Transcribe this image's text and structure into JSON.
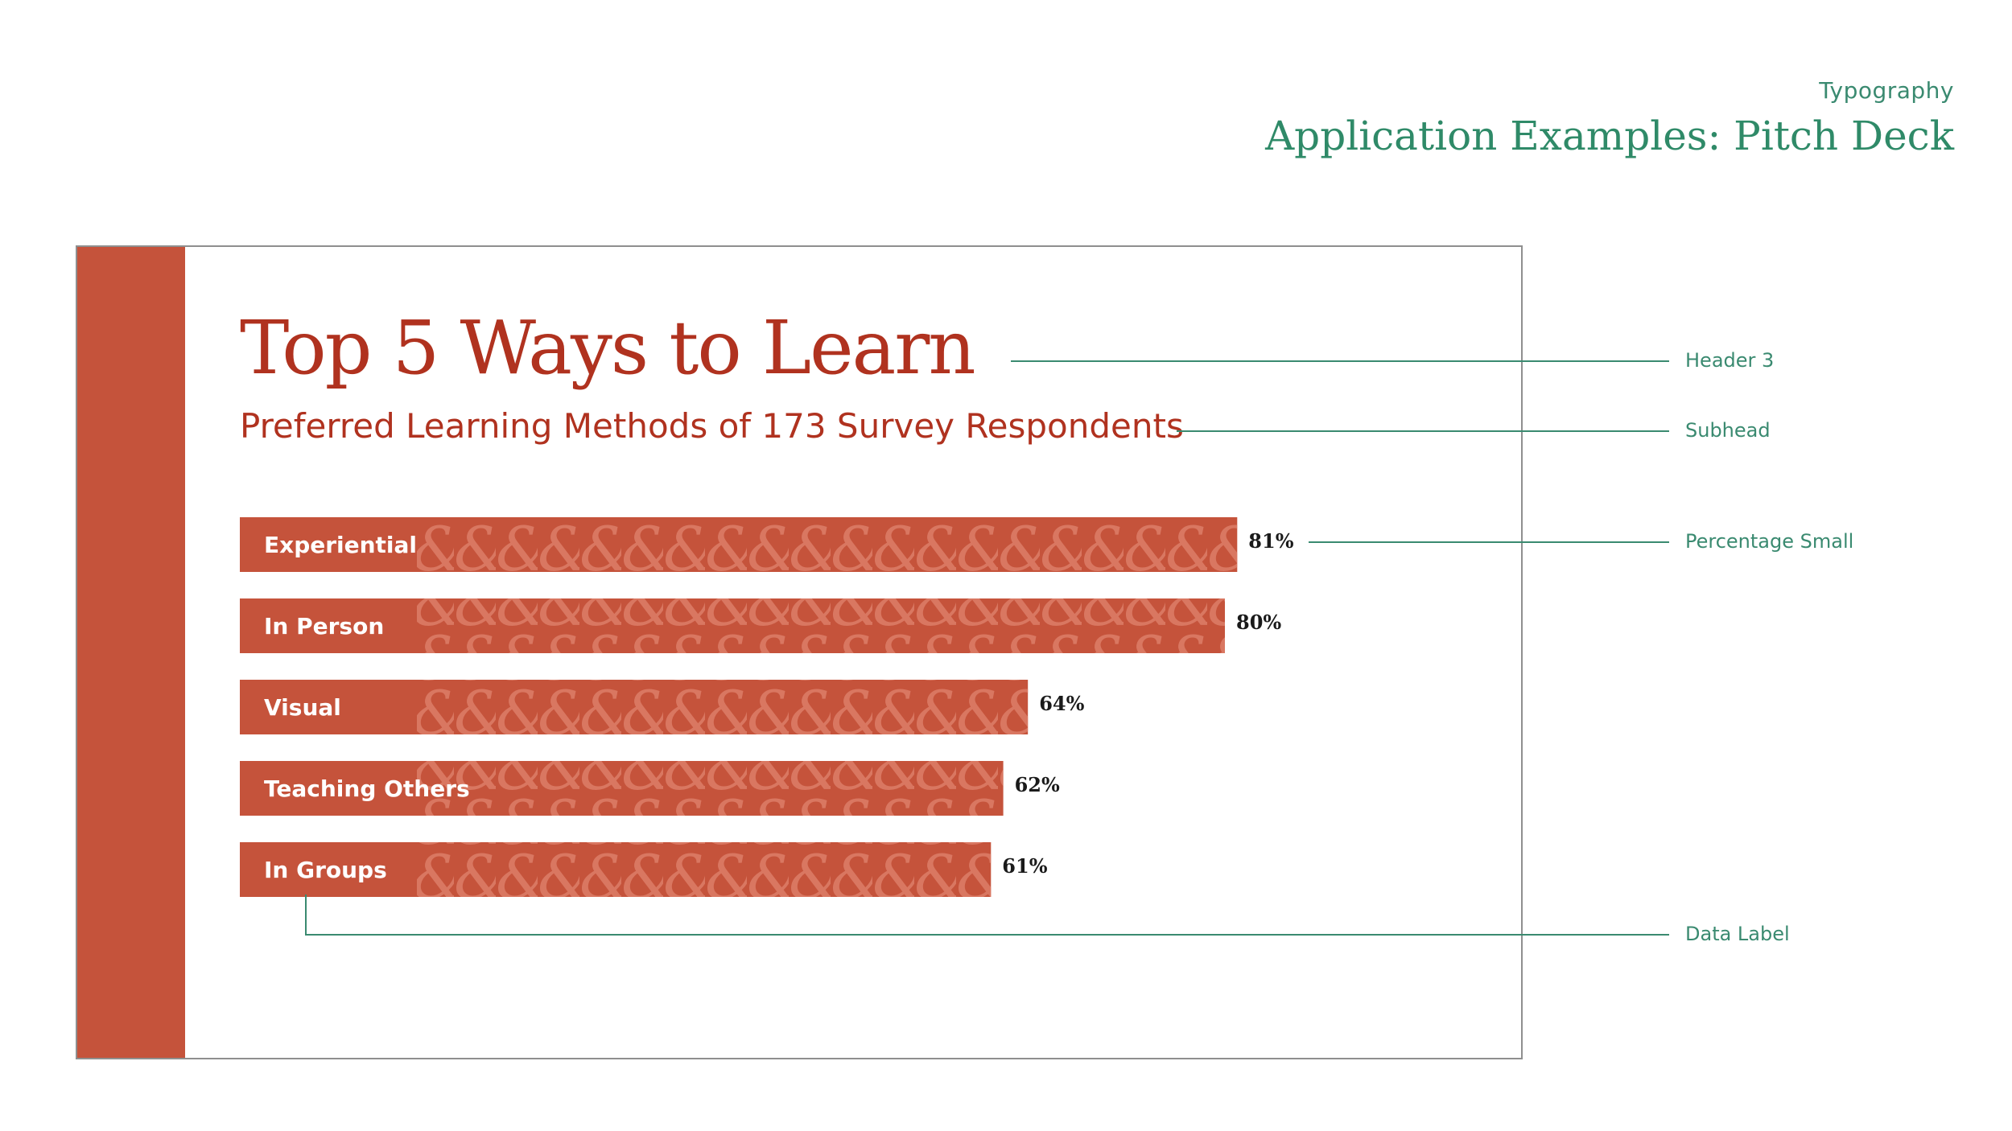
{
  "header": {
    "section": "Typography",
    "title": "Application Examples: Pitch Deck"
  },
  "slide": {
    "header": "Top 5 Ways to Learn",
    "subhead": "Preferred Learning Methods of 173 Survey Respondents"
  },
  "annotations": {
    "header3": "Header 3",
    "subhead": "Subhead",
    "percentage_small": "Percentage Small",
    "data_label": "Data Label"
  },
  "colors": {
    "accent_red": "#c5533b",
    "title_red": "#b0321f",
    "annotation_green": "#3a8a70"
  },
  "chart_data": {
    "type": "bar",
    "orientation": "horizontal",
    "categories": [
      "Experiential",
      "In Person",
      "Visual",
      "Teaching Others",
      "In Groups"
    ],
    "values": [
      81,
      80,
      64,
      62,
      61
    ],
    "value_labels": [
      "81%",
      "80%",
      "64%",
      "62%",
      "61%"
    ],
    "unit": "%",
    "title": "Top 5 Ways to Learn",
    "subtitle": "Preferred Learning Methods of 173 Survey Respondents",
    "xlim": [
      0,
      100
    ],
    "grid": false,
    "legend": "none"
  }
}
